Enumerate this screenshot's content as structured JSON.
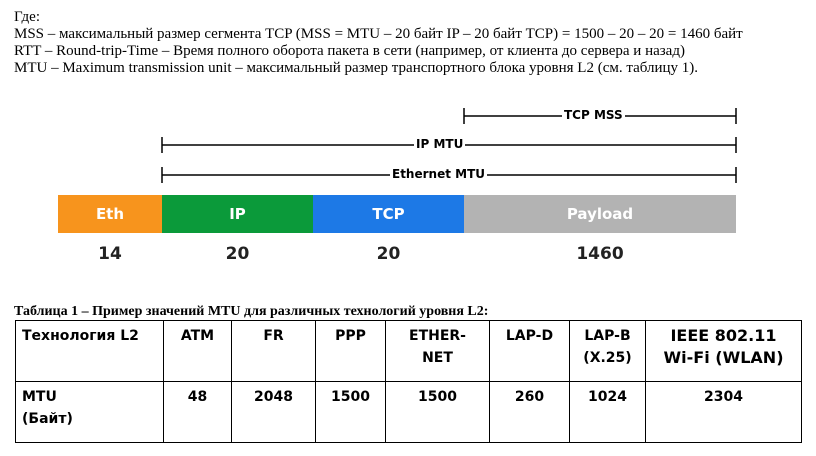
{
  "text": {
    "where": "Где:",
    "mss_def": "MSS – максимальный размер сегмента TCP (MSS = MTU – 20 байт IP – 20 байт TCP) = 1500 – 20 – 20 = 1460 байт",
    "rtt_def": "RTT – Round-trip-Time – Время полного оборота пакета в сети (например, от клиента до сервера и назад)",
    "mtu_def": "MTU – Maximum transmission unit – максимальный размер транспортного блока уровня L2 (см. таблицу 1)."
  },
  "diagram": {
    "dims": {
      "tcp_mss": "TCP MSS",
      "ip_mtu": "IP MTU",
      "ethernet_mtu": "Ethernet MTU"
    },
    "segments": [
      {
        "label": "Eth",
        "size": "14",
        "color": "#f7941d"
      },
      {
        "label": "IP",
        "size": "20",
        "color": "#0b9a3a"
      },
      {
        "label": "TCP",
        "size": "20",
        "color": "#1d79e6"
      },
      {
        "label": "Payload",
        "size": "1460",
        "color": "#b3b3b3"
      }
    ]
  },
  "table": {
    "caption": "Таблица 1 – Пример значений MTU для различных технологий уровня L2:",
    "header": {
      "tech": "Технология L2",
      "atm": "ATM",
      "fr": "FR",
      "ppp": "PPP",
      "ether_1": "ETHER-",
      "ether_2": "NET",
      "lapd": "LAP-D",
      "lapb_1": "LAP-B",
      "lapb_2": "(X.25)",
      "wifi_1": "IEEE 802.11",
      "wifi_2": "Wi-Fi (WLAN)"
    },
    "row": {
      "mtu_1": "MTU",
      "mtu_2": "(Байт)",
      "atm": "48",
      "fr": "2048",
      "ppp": "1500",
      "ether": "1500",
      "lapd": "260",
      "lapb": "1024",
      "wifi": "2304"
    }
  }
}
